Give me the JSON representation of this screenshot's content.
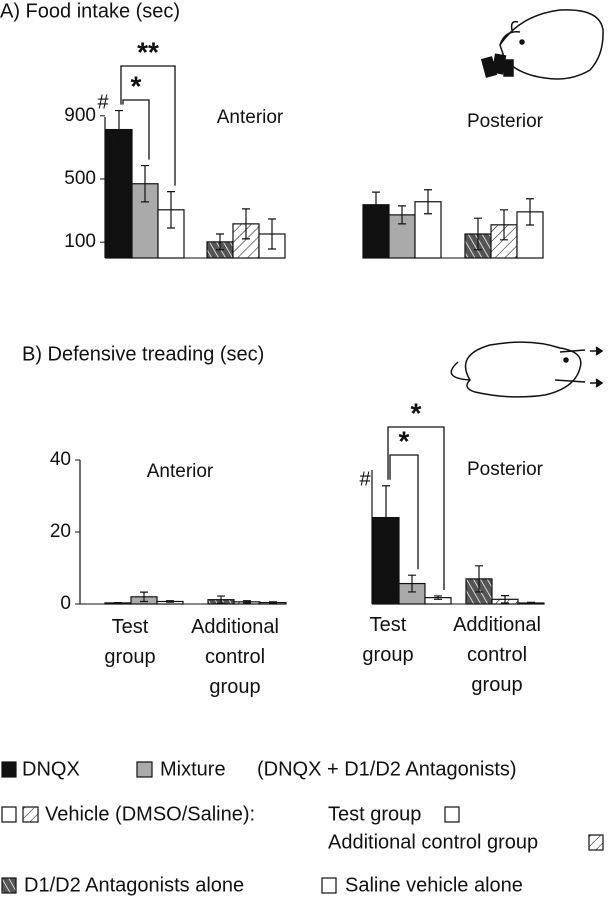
{
  "chart_data": [
    {
      "type": "bar",
      "title": "A) Food intake (sec)",
      "subtitle": "Anterior",
      "values": [
        813,
        470,
        305,
        102,
        216,
        152
      ],
      "errors": [
        120,
        115,
        115,
        50,
        95,
        95
      ],
      "fills": [
        "black",
        "gray",
        "white",
        "dark-hatch",
        "hatch",
        "white"
      ],
      "ylim": [
        0,
        1000
      ],
      "yticks": [
        100,
        500,
        900
      ],
      "annotations": [
        "#",
        "*",
        "**"
      ]
    },
    {
      "type": "bar",
      "subtitle": "Posterior",
      "values": [
        337,
        273,
        356,
        152,
        210,
        292
      ],
      "errors": [
        80,
        57,
        76,
        100,
        95,
        83
      ],
      "fills": [
        "black",
        "gray",
        "white",
        "dark-hatch",
        "hatch",
        "white"
      ],
      "ylim": [
        0,
        1000
      ]
    },
    {
      "type": "bar",
      "title": "B) Defensive treading (sec)",
      "subtitle": "Anterior",
      "values": [
        0.3,
        2,
        0.7,
        1.2,
        0.6,
        0.4
      ],
      "errors": [
        0.1,
        1.3,
        0.2,
        1,
        0.3,
        0.2
      ],
      "fills": [
        "black",
        "gray",
        "white",
        "dark-hatch",
        "hatch",
        "white"
      ],
      "ylim": [
        0,
        40
      ],
      "yticks": [
        0,
        20,
        40
      ],
      "groups": [
        "Test group",
        "Additional control group"
      ]
    },
    {
      "type": "bar",
      "subtitle": "Posterior",
      "values": [
        25.8,
        6.1,
        1.9,
        7.5,
        1.4,
        0.3
      ],
      "errors": [
        9.5,
        2.5,
        0.5,
        3.9,
        1.1,
        0.2
      ],
      "fills": [
        "black",
        "gray",
        "white",
        "dark-hatch",
        "hatch",
        "white"
      ],
      "ylim": [
        0,
        40
      ],
      "groups": [
        "Test group",
        "Additional control group"
      ],
      "annotations": [
        "#",
        "*",
        "*"
      ]
    }
  ],
  "legend": {
    "dnqx": "DNQX",
    "mixture": "Mixture",
    "mixture_note": "(DNQX + D1/D2 Antagonists)",
    "vehicle": "Vehicle (DMSO/Saline):",
    "test_group": "Test group",
    "control_group": "Additional control group",
    "antagonists": "D1/D2 Antagonists alone",
    "saline": "Saline vehicle alone"
  }
}
